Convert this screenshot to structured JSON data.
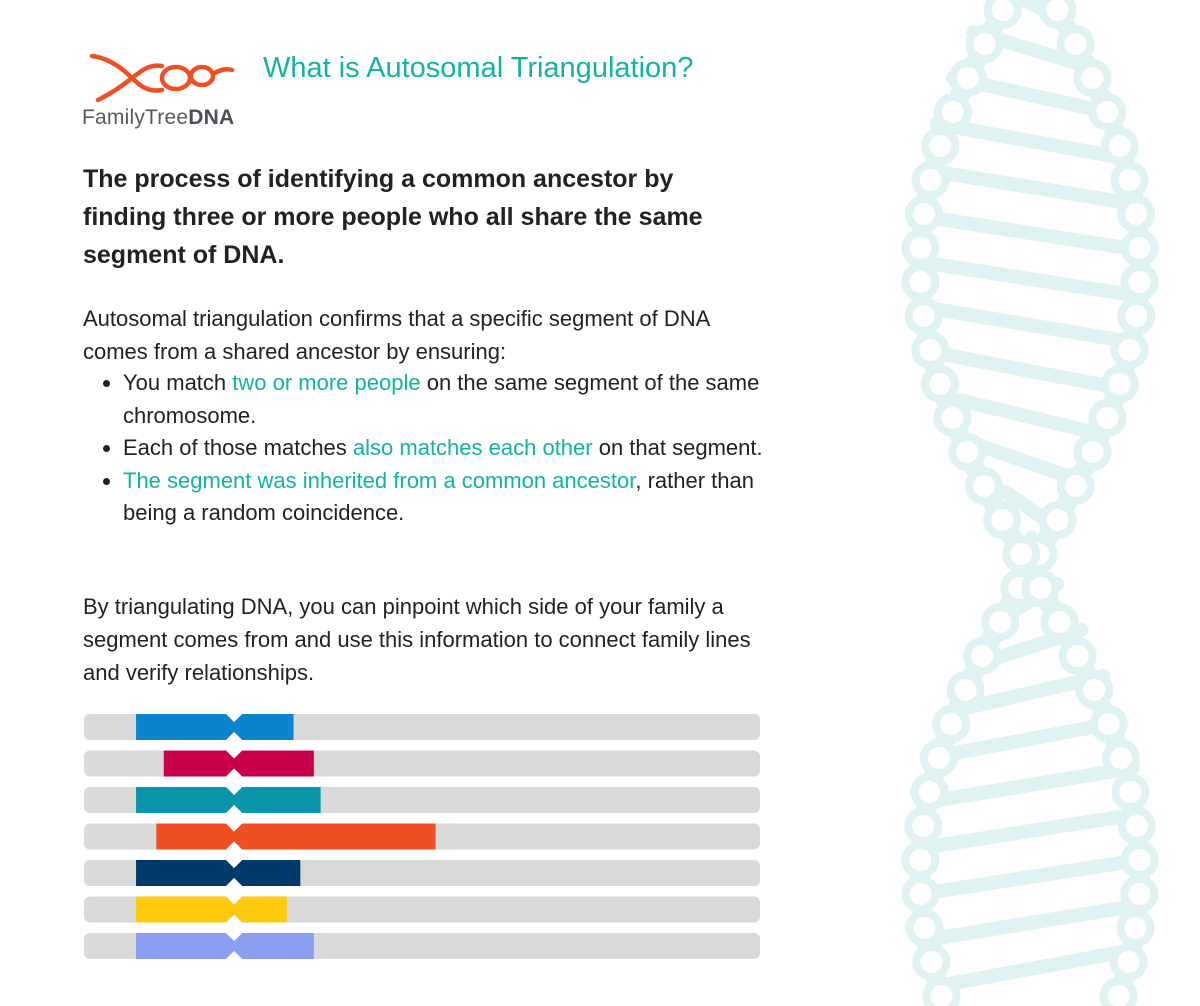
{
  "brand": {
    "name_part1": "FamilyTree",
    "name_part2": "DNA",
    "logo_color": "#f04e23"
  },
  "title": "What is Autosomal Triangulation?",
  "lead": "The process of identifying a common ancestor by finding three or more people who all share the same segment of DNA.",
  "intro": "Autosomal triangulation confirms that a specific segment of DNA comes from a shared ancestor by ensuring:",
  "bullets": [
    {
      "pre": "You match ",
      "highlight": "two or more people",
      "post": " on the same segment of the same chromosome."
    },
    {
      "pre": "Each of those matches ",
      "highlight": "also matches each other",
      "post": " on that segment."
    },
    {
      "pre": "",
      "highlight": "The segment was inherited from a common ancestor",
      "post": ", rather than being a random coincidence."
    }
  ],
  "outro": "By triangulating DNA, you can pinpoint which side of your family a segment comes from and use this information to connect family lines and verify relationships.",
  "colors": {
    "accent": "#13b3a4",
    "track": "#d9d9d9",
    "helix": "#dff3f3"
  },
  "chart_data": {
    "type": "bar",
    "chart_kind": "chromosome segment diagram",
    "rows": [
      {
        "start": 0.077,
        "end": 0.31,
        "color": "#0a84cc"
      },
      {
        "start": 0.118,
        "end": 0.34,
        "color": "#c8004a"
      },
      {
        "start": 0.077,
        "end": 0.35,
        "color": "#0a96aa"
      },
      {
        "start": 0.107,
        "end": 0.52,
        "color": "#f04e23"
      },
      {
        "start": 0.077,
        "end": 0.32,
        "color": "#003a6a"
      },
      {
        "start": 0.077,
        "end": 0.3,
        "color": "#ffc90e"
      },
      {
        "start": 0.077,
        "end": 0.34,
        "color": "#8a9ff0"
      }
    ],
    "centromere": 0.222
  }
}
